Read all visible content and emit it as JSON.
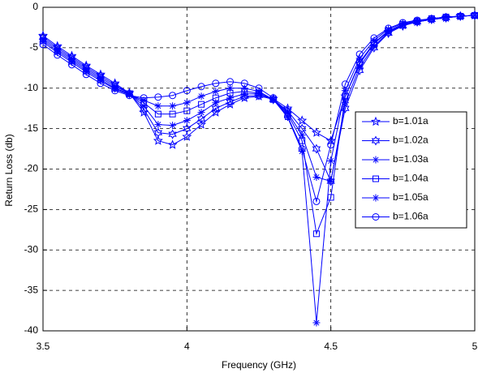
{
  "chart_data": {
    "type": "line",
    "x_label": "Frequency (GHz)",
    "y_label": "Return Loss (db)",
    "x": [
      3.5,
      3.55,
      3.6,
      3.65,
      3.7,
      3.75,
      3.8,
      3.85,
      3.9,
      3.95,
      4.0,
      4.05,
      4.1,
      4.15,
      4.2,
      4.25,
      4.3,
      4.35,
      4.4,
      4.45,
      4.5,
      4.55,
      4.6,
      4.65,
      4.7,
      4.75,
      4.8,
      4.85,
      4.9,
      4.95,
      5.0
    ],
    "xlim": [
      3.5,
      5
    ],
    "xticks": [
      3.5,
      4,
      4.5,
      5
    ],
    "ylim": [
      -40,
      0
    ],
    "yticks": [
      0,
      -5,
      -10,
      -15,
      -20,
      -25,
      -30,
      -35,
      -40
    ],
    "grid": true,
    "legend": "right",
    "series": [
      {
        "name": "b=1.01a",
        "color": "#0000ff",
        "marker": "pentagram",
        "values": [
          -3.5,
          -4.8,
          -6.0,
          -7.2,
          -8.3,
          -9.4,
          -10.6,
          -13.0,
          -16.5,
          -17.0,
          -16.0,
          -14.5,
          -13.0,
          -12.0,
          -11.2,
          -11.0,
          -11.3,
          -12.5,
          -14.0,
          -15.5,
          -16.5,
          -11.0,
          -7.0,
          -4.5,
          -3.0,
          -2.2,
          -1.8,
          -1.5,
          -1.3,
          -1.1,
          -1.0
        ]
      },
      {
        "name": "b=1.02a",
        "color": "#0000ff",
        "marker": "hexagram",
        "values": [
          -3.7,
          -5.0,
          -6.2,
          -7.4,
          -8.5,
          -9.6,
          -10.6,
          -12.6,
          -15.5,
          -15.7,
          -15.0,
          -13.8,
          -12.5,
          -11.7,
          -11.0,
          -10.9,
          -11.4,
          -12.8,
          -15.0,
          -17.5,
          -21.5,
          -12.5,
          -7.8,
          -5.0,
          -3.2,
          -2.3,
          -1.8,
          -1.5,
          -1.3,
          -1.1,
          -1.0
        ]
      },
      {
        "name": "b=1.03a",
        "color": "#0000ff",
        "marker": "asterisk",
        "values": [
          -3.9,
          -5.2,
          -6.4,
          -7.6,
          -8.7,
          -9.8,
          -10.6,
          -12.2,
          -14.5,
          -14.6,
          -14.0,
          -13.0,
          -11.8,
          -11.2,
          -10.7,
          -10.7,
          -11.4,
          -13.0,
          -15.8,
          -21.0,
          -21.5,
          -11.8,
          -7.4,
          -4.8,
          -3.1,
          -2.2,
          -1.8,
          -1.5,
          -1.3,
          -1.1,
          -1.0
        ]
      },
      {
        "name": "b=1.04a",
        "color": "#0000ff",
        "marker": "square",
        "values": [
          -4.1,
          -5.4,
          -6.6,
          -7.8,
          -8.9,
          -10.0,
          -10.7,
          -11.8,
          -13.2,
          -13.2,
          -12.8,
          -12.0,
          -11.2,
          -10.6,
          -10.4,
          -10.6,
          -11.4,
          -13.2,
          -16.5,
          -28.0,
          -23.5,
          -11.0,
          -6.8,
          -4.4,
          -2.9,
          -2.1,
          -1.7,
          -1.4,
          -1.2,
          -1.1,
          -1.0
        ]
      },
      {
        "name": "b=1.05a",
        "color": "#0000ff",
        "marker": "asterisk",
        "values": [
          -4.3,
          -5.6,
          -6.8,
          -8.0,
          -9.1,
          -10.1,
          -10.8,
          -11.5,
          -12.2,
          -12.2,
          -11.8,
          -11.0,
          -10.4,
          -10.0,
          -10.0,
          -10.4,
          -11.4,
          -13.6,
          -17.8,
          -39.0,
          -19.0,
          -10.3,
          -6.3,
          -4.1,
          -2.7,
          -2.0,
          -1.7,
          -1.4,
          -1.2,
          -1.1,
          -1.0
        ]
      },
      {
        "name": "b=1.06a",
        "color": "#0000ff",
        "marker": "circle",
        "values": [
          -4.6,
          -5.9,
          -7.1,
          -8.3,
          -9.4,
          -10.3,
          -10.9,
          -11.2,
          -11.1,
          -10.9,
          -10.3,
          -9.8,
          -9.4,
          -9.2,
          -9.4,
          -10.0,
          -11.2,
          -13.5,
          -17.5,
          -24.0,
          -17.0,
          -9.5,
          -5.8,
          -3.8,
          -2.6,
          -1.9,
          -1.6,
          -1.4,
          -1.2,
          -1.1,
          -1.0
        ]
      }
    ]
  }
}
